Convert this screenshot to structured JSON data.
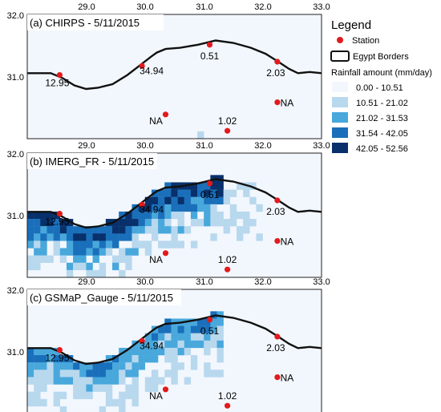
{
  "axes": {
    "x_ticks": [
      "29.0",
      "30.0",
      "31.0",
      "32.0",
      "33.0"
    ],
    "y_ticks": [
      "32.0",
      "31.0"
    ]
  },
  "panels": [
    {
      "id": "a",
      "title": "(a) CHIRPS - 5/11/2015"
    },
    {
      "id": "b",
      "title": "(b) IMERG_FR - 5/11/2015"
    },
    {
      "id": "c",
      "title": "(c) GSMaP_Gauge - 5/11/2015"
    }
  ],
  "stations": [
    {
      "label": "12.95",
      "lon": 28.55,
      "lat": 31.05
    },
    {
      "label": "34.94",
      "lon": 29.95,
      "lat": 31.2
    },
    {
      "label": "0.51",
      "lon": 31.1,
      "lat": 31.55
    },
    {
      "label": "2.03",
      "lon": 32.25,
      "lat": 31.27
    },
    {
      "label": "NA",
      "lon": 30.35,
      "lat": 30.4
    },
    {
      "label": "NA",
      "lon": 32.25,
      "lat": 30.6
    },
    {
      "label": "1.02",
      "lon": 31.4,
      "lat": 30.13
    }
  ],
  "legend": {
    "title": "Legend",
    "station_label": "Station",
    "border_label": "Egypt Borders",
    "rain_title": "Rainfall amount (mm/day)",
    "classes": [
      {
        "label": "0.00 - 10.51",
        "color": "#f2f7fd"
      },
      {
        "label": "10.51 - 21.02",
        "color": "#b8d8ee"
      },
      {
        "label": "21.02 - 31.53",
        "color": "#48a8dc"
      },
      {
        "label": "31.54 - 42.05",
        "color": "#1a6fba"
      },
      {
        "label": "42.05 - 52.56",
        "color": "#08306b"
      }
    ]
  },
  "colors": {
    "station": "#e31a1c",
    "border": "#111111",
    "background": "#f2f7fd"
  }
}
